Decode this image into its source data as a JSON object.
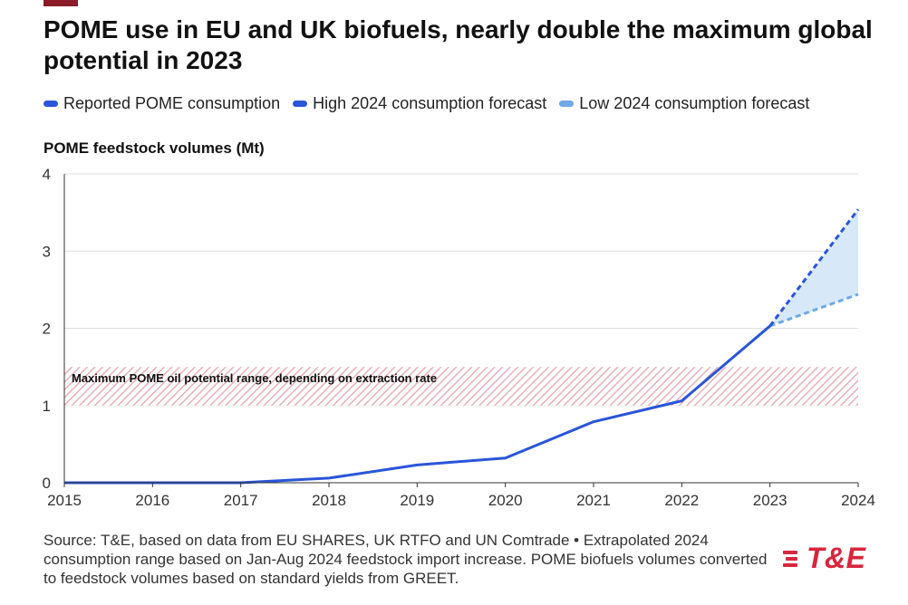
{
  "colors": {
    "accent": "#8b1a2b",
    "reported": "#2955d8",
    "high": "#2955d8",
    "low": "#6fa8e6",
    "band_fill": "#d7e8f8",
    "hatch": "#e4a1b1",
    "logo": "#d7263d",
    "grid": "#dddddd",
    "axis": "#333333"
  },
  "title": "POME use in EU and UK biofuels, nearly double the maximum global potential in 2023",
  "legend": [
    {
      "label": "Reported POME consumption",
      "color": "#2955d8"
    },
    {
      "label": "High 2024 consumption forecast",
      "color": "#2955d8"
    },
    {
      "label": "Low 2024 consumption forecast",
      "color": "#6fa8e6"
    }
  ],
  "chart_data": {
    "type": "line",
    "title": "POME feedstock volumes (Mt)",
    "xlabel": "",
    "ylabel": "POME feedstock volumes (Mt)",
    "x": [
      "2015",
      "2016",
      "2017",
      "2018",
      "2019",
      "2020",
      "2021",
      "2022",
      "2023",
      "2024"
    ],
    "xlim": [
      2015,
      2024
    ],
    "ylim": [
      0,
      4
    ],
    "yticks": [
      "0",
      "1",
      "2",
      "3",
      "4"
    ],
    "series": [
      {
        "name": "Reported POME consumption",
        "style": "solid",
        "x": [
          2015,
          2016,
          2017,
          2018,
          2019,
          2020,
          2021,
          2022,
          2023
        ],
        "values": [
          0.0,
          0.0,
          0.0,
          0.06,
          0.23,
          0.32,
          0.79,
          1.06,
          2.03
        ]
      },
      {
        "name": "High 2024 consumption forecast",
        "style": "dashed",
        "x": [
          2023,
          2024
        ],
        "values": [
          2.03,
          3.54
        ]
      },
      {
        "name": "Low 2024 consumption forecast",
        "style": "dashed",
        "x": [
          2023,
          2024
        ],
        "values": [
          2.03,
          2.44
        ]
      }
    ],
    "band": {
      "label": "Maximum POME oil potential range, depending on extraction rate",
      "y_range": [
        1.0,
        1.5
      ],
      "x_range": [
        2015,
        2024
      ]
    }
  },
  "source": "Source: T&E, based on data from EU SHARES, UK RTFO and UN Comtrade • Extrapolated 2024 consumption range based on Jan-Aug 2024 feedstock import increase. POME biofuels volumes converted to feedstock volumes based on standard yields from GREET.",
  "logo": {
    "text": "T&E"
  }
}
